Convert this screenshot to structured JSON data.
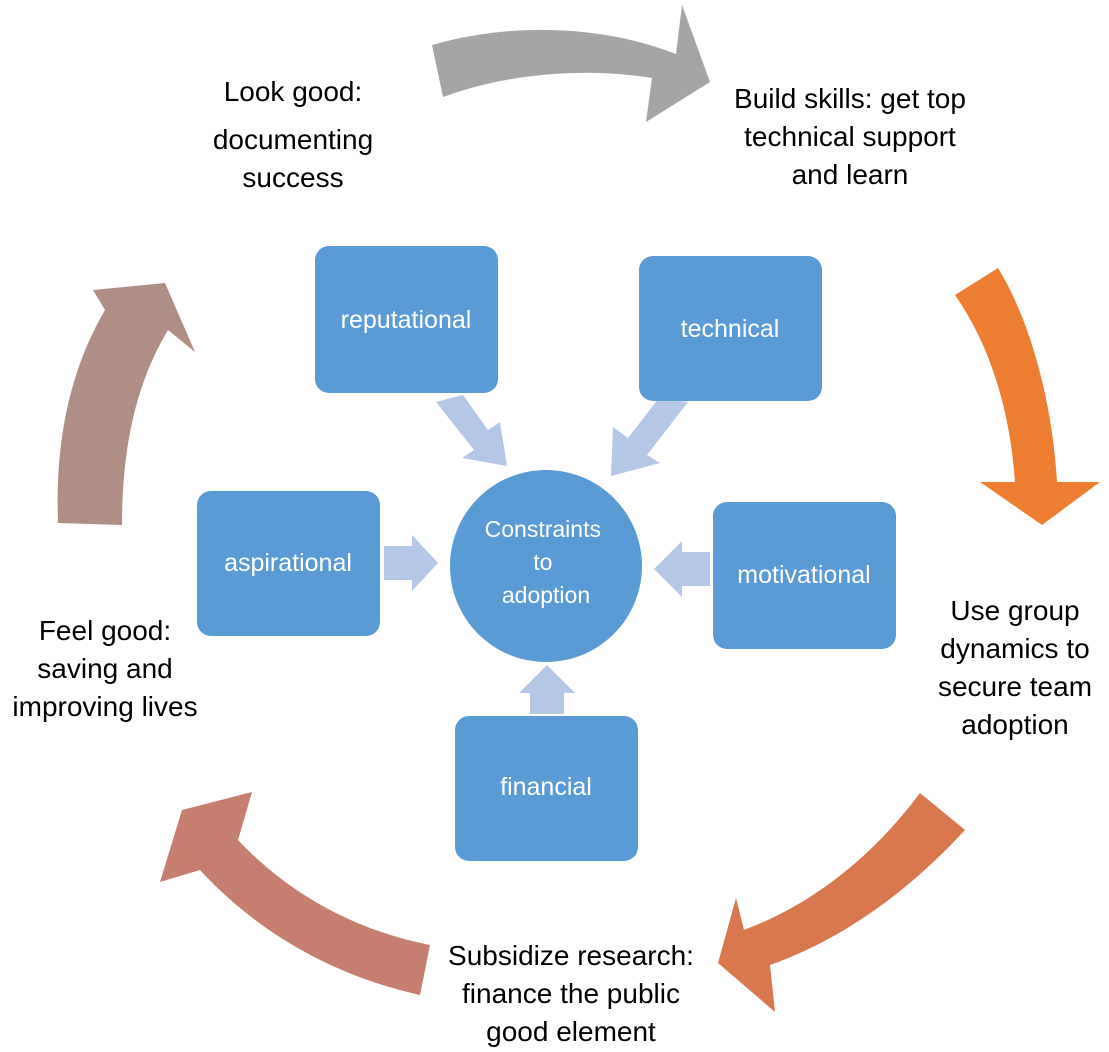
{
  "center": {
    "lines": [
      "Constraints",
      "to",
      "adoption"
    ],
    "color": "#5b9bd5"
  },
  "constraints": {
    "reputational": "reputational",
    "technical": "technical",
    "aspirational": "aspirational",
    "motivational": "motivational",
    "financial": "financial"
  },
  "cycle_labels": {
    "look_good": [
      "Look good:",
      "documenting",
      "success"
    ],
    "build_skills": [
      "Build skills: get top",
      "technical support",
      "and learn"
    ],
    "group_dynamics": [
      "Use group",
      "dynamics to",
      "secure team",
      "adoption"
    ],
    "subsidize": [
      "Subsidize research:",
      "finance the public",
      "good element"
    ],
    "feel_good": [
      "Feel good:",
      "saving and",
      "improving lives"
    ]
  },
  "colors": {
    "box_fill": "#5b9bd5",
    "inner_arrow": "#b4c7e7",
    "arrow_gray": "#a5a5a5",
    "arrow_orange": "#ed7d31",
    "arrow_orange_red": "#d9774f",
    "arrow_terracotta": "#c67f6e",
    "arrow_mauve": "#b08e86"
  }
}
